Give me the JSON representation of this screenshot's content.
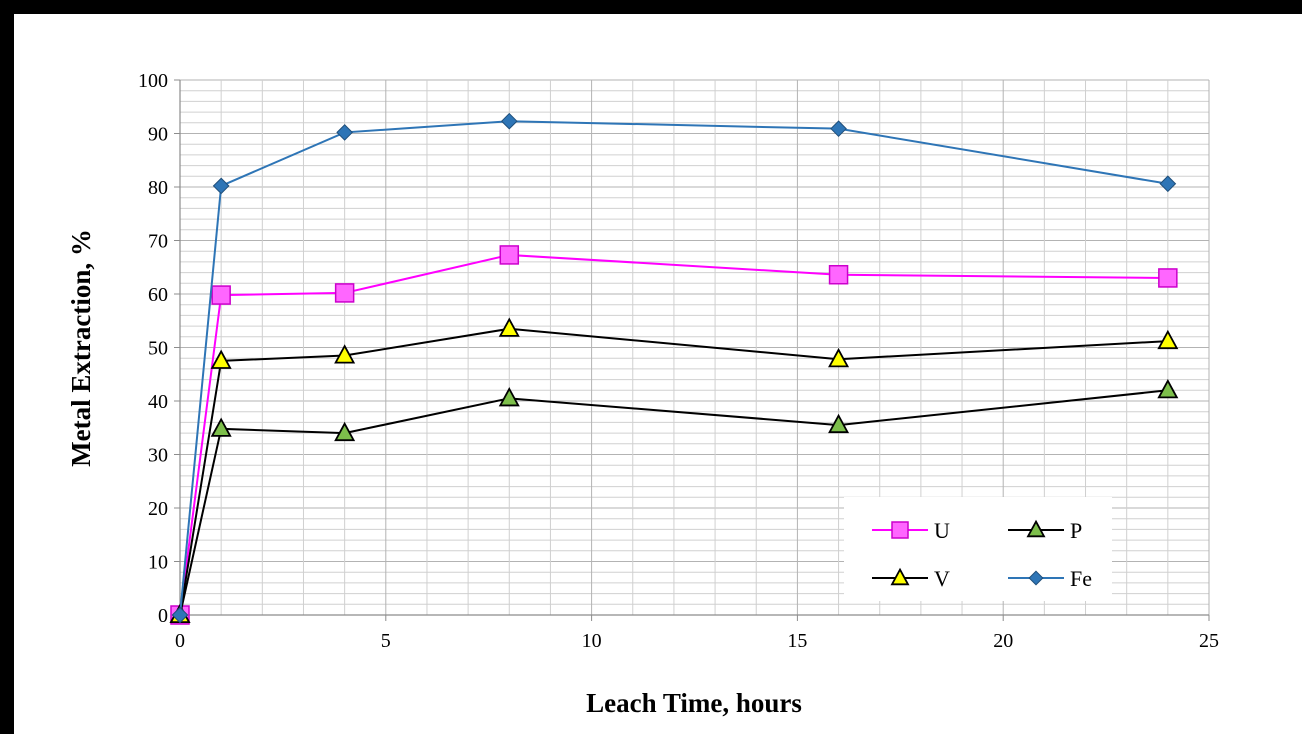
{
  "chart_data": {
    "type": "line",
    "xlabel": "Leach Time, hours",
    "ylabel": "Metal Extraction, %",
    "xlim": [
      0,
      25
    ],
    "ylim": [
      0,
      100
    ],
    "x_ticks": [
      0,
      5,
      10,
      15,
      20,
      25
    ],
    "y_ticks": [
      0,
      10,
      20,
      30,
      40,
      50,
      60,
      70,
      80,
      90,
      100
    ],
    "grid": "on (major and minor)",
    "legend_position": "bottom-right",
    "x": [
      0,
      1,
      4,
      8,
      16,
      24
    ],
    "series": [
      {
        "name": "U",
        "marker": "square",
        "line_color": "#ff00ff",
        "marker_fill": "#ff66ff",
        "values": [
          0,
          59.8,
          60.2,
          67.3,
          63.6,
          63.0
        ]
      },
      {
        "name": "P",
        "marker": "triangle",
        "line_color": "#000000",
        "marker_fill": "#7dbf4b",
        "values": [
          0,
          34.8,
          34.0,
          40.5,
          35.5,
          42.0
        ]
      },
      {
        "name": "V",
        "marker": "triangle",
        "line_color": "#000000",
        "marker_fill": "#ffff00",
        "values": [
          0,
          47.5,
          48.5,
          53.5,
          47.8,
          51.2
        ]
      },
      {
        "name": "Fe",
        "marker": "diamond",
        "line_color": "#2e75b6",
        "marker_fill": "#2e75b6",
        "values": [
          0,
          80.2,
          90.2,
          92.3,
          90.9,
          80.6
        ]
      }
    ]
  }
}
